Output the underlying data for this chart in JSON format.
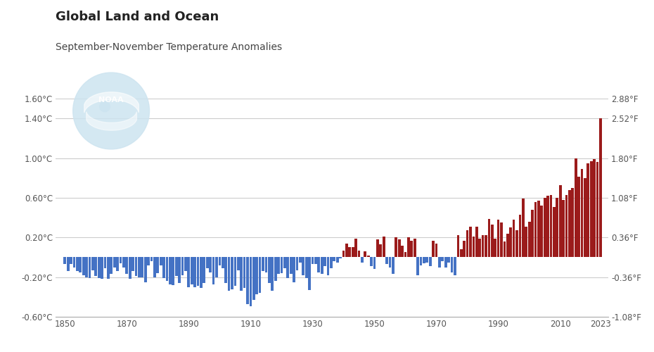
{
  "title": "Global Land and Ocean",
  "subtitle": "September-November Temperature Anomalies",
  "years": [
    1850,
    1851,
    1852,
    1853,
    1854,
    1855,
    1856,
    1857,
    1858,
    1859,
    1860,
    1861,
    1862,
    1863,
    1864,
    1865,
    1866,
    1867,
    1868,
    1869,
    1870,
    1871,
    1872,
    1873,
    1874,
    1875,
    1876,
    1877,
    1878,
    1879,
    1880,
    1881,
    1882,
    1883,
    1884,
    1885,
    1886,
    1887,
    1888,
    1889,
    1890,
    1891,
    1892,
    1893,
    1894,
    1895,
    1896,
    1897,
    1898,
    1899,
    1900,
    1901,
    1902,
    1903,
    1904,
    1905,
    1906,
    1907,
    1908,
    1909,
    1910,
    1911,
    1912,
    1913,
    1914,
    1915,
    1916,
    1917,
    1918,
    1919,
    1920,
    1921,
    1922,
    1923,
    1924,
    1925,
    1926,
    1927,
    1928,
    1929,
    1930,
    1931,
    1932,
    1933,
    1934,
    1935,
    1936,
    1937,
    1938,
    1939,
    1940,
    1941,
    1942,
    1943,
    1944,
    1945,
    1946,
    1947,
    1948,
    1949,
    1950,
    1951,
    1952,
    1953,
    1954,
    1955,
    1956,
    1957,
    1958,
    1959,
    1960,
    1961,
    1962,
    1963,
    1964,
    1965,
    1966,
    1967,
    1968,
    1969,
    1970,
    1971,
    1972,
    1973,
    1974,
    1975,
    1976,
    1977,
    1978,
    1979,
    1980,
    1981,
    1982,
    1983,
    1984,
    1985,
    1986,
    1987,
    1988,
    1989,
    1990,
    1991,
    1992,
    1993,
    1994,
    1995,
    1996,
    1997,
    1998,
    1999,
    2000,
    2001,
    2002,
    2003,
    2004,
    2005,
    2006,
    2007,
    2008,
    2009,
    2010,
    2011,
    2012,
    2013,
    2014,
    2015,
    2016,
    2017,
    2018,
    2019,
    2020,
    2021,
    2022,
    2023
  ],
  "anomalies": [
    -0.07,
    -0.14,
    -0.07,
    -0.1,
    -0.14,
    -0.15,
    -0.18,
    -0.2,
    -0.21,
    -0.13,
    -0.19,
    -0.21,
    -0.22,
    -0.11,
    -0.22,
    -0.17,
    -0.1,
    -0.14,
    -0.06,
    -0.1,
    -0.17,
    -0.22,
    -0.14,
    -0.19,
    -0.2,
    -0.2,
    -0.25,
    -0.08,
    -0.04,
    -0.2,
    -0.16,
    -0.08,
    -0.21,
    -0.24,
    -0.27,
    -0.28,
    -0.19,
    -0.26,
    -0.18,
    -0.14,
    -0.3,
    -0.27,
    -0.3,
    -0.29,
    -0.31,
    -0.26,
    -0.11,
    -0.15,
    -0.27,
    -0.2,
    -0.08,
    -0.11,
    -0.26,
    -0.34,
    -0.32,
    -0.29,
    -0.13,
    -0.34,
    -0.31,
    -0.47,
    -0.49,
    -0.43,
    -0.37,
    -0.36,
    -0.14,
    -0.15,
    -0.26,
    -0.34,
    -0.24,
    -0.17,
    -0.16,
    -0.11,
    -0.21,
    -0.17,
    -0.25,
    -0.13,
    -0.05,
    -0.18,
    -0.21,
    -0.33,
    -0.07,
    -0.07,
    -0.15,
    -0.17,
    -0.09,
    -0.18,
    -0.11,
    -0.04,
    -0.05,
    -0.01,
    0.07,
    0.14,
    0.1,
    0.1,
    0.19,
    0.07,
    -0.05,
    0.06,
    0.02,
    -0.09,
    -0.12,
    0.18,
    0.13,
    0.21,
    -0.07,
    -0.1,
    -0.17,
    0.2,
    0.18,
    0.12,
    0.05,
    0.2,
    0.17,
    0.19,
    -0.18,
    -0.08,
    -0.06,
    -0.05,
    -0.09,
    0.17,
    0.14,
    -0.1,
    -0.04,
    -0.1,
    -0.05,
    -0.15,
    -0.18,
    0.22,
    0.08,
    0.17,
    0.27,
    0.31,
    0.21,
    0.31,
    0.19,
    0.22,
    0.22,
    0.39,
    0.33,
    0.19,
    0.38,
    0.35,
    0.16,
    0.24,
    0.3,
    0.38,
    0.27,
    0.43,
    0.59,
    0.31,
    0.36,
    0.48,
    0.56,
    0.57,
    0.52,
    0.6,
    0.62,
    0.63,
    0.51,
    0.6,
    0.73,
    0.58,
    0.63,
    0.68,
    0.7,
    1.0,
    0.81,
    0.89,
    0.8,
    0.95,
    0.97,
    0.99,
    0.96,
    1.4
  ],
  "ylim_c": [
    -0.6,
    1.6
  ],
  "ylim_f": [
    -1.08,
    2.88
  ],
  "yticks_c": [
    -0.6,
    -0.2,
    0.2,
    0.6,
    1.0,
    1.4,
    1.6
  ],
  "yticks_f": [
    -1.08,
    -0.36,
    0.36,
    1.08,
    1.8,
    2.52,
    2.88
  ],
  "ytick_labels_c": [
    "-0.60°C",
    "-0.20°C",
    "0.20°C",
    "0.60°C",
    "1.00°C",
    "1.40°C",
    "1.60°C"
  ],
  "ytick_labels_f": [
    "-1.08°F",
    "-0.36°F",
    "0.36°F",
    "1.08°F",
    "1.80°F",
    "2.52°F",
    "2.88°F"
  ],
  "xticks": [
    1850,
    1870,
    1890,
    1910,
    1930,
    1950,
    1970,
    1990,
    2010,
    2023
  ],
  "color_positive": "#9B1B1B",
  "color_negative": "#4472C4",
  "background_color": "#ffffff",
  "grid_color": "#cccccc",
  "title_fontsize": 13,
  "subtitle_fontsize": 10,
  "noaa_logo_color": "#cde4f0",
  "noaa_logo_color2": "#b8d8eb"
}
